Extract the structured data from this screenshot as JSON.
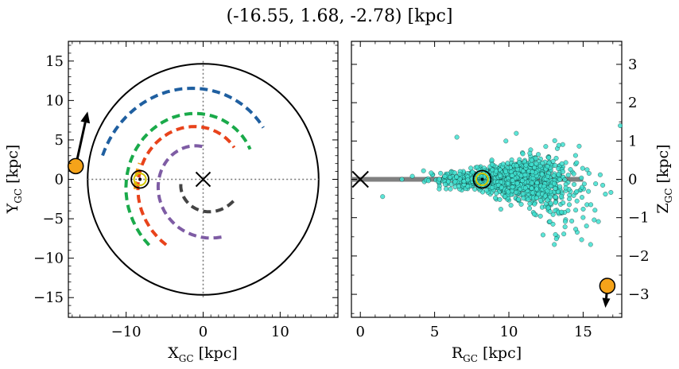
{
  "title": "(-16.55, 1.68, -2.78) [kpc]",
  "colors": {
    "arm_blue": "#1f5fa0",
    "arm_green": "#1aaa4a",
    "arm_red": "#e8431b",
    "arm_purple": "#7e5ca4",
    "arm_gray": "#444444",
    "arm_orange": "#ef9a1a",
    "star_marker": "#f5a31a",
    "disk_points": "#40e0d0",
    "disk_plane": "#808080",
    "sun_ring": "#d4c800"
  },
  "chart_data": [
    {
      "type": "scatter",
      "name": "top-down view",
      "xlabel": "X",
      "xlabel_sub": "GC",
      "xlabel_unit": " [kpc]",
      "ylabel": "Y",
      "ylabel_sub": "GC",
      "ylabel_unit": " [kpc]",
      "xlim": [
        -17.5,
        17.5
      ],
      "ylim": [
        -17.5,
        17.5
      ],
      "xticks": [
        -10,
        0,
        10
      ],
      "yticks": [
        -15,
        -10,
        -5,
        0,
        5,
        10,
        15
      ],
      "xtick_labels": [
        "−10",
        "0",
        "10"
      ],
      "ytick_labels": [
        "−15",
        "−10",
        "−5",
        "0",
        "5",
        "10",
        "15"
      ],
      "disk_radius": 15,
      "galactic_center": [
        0,
        0
      ],
      "sun": [
        -8.2,
        0
      ],
      "star": {
        "x": -16.55,
        "y": 1.68
      },
      "velocity_arrow": {
        "from": [
          -16.55,
          1.68
        ],
        "to": [
          -15.0,
          8.6
        ]
      },
      "spiral_arms": [
        {
          "color_key": "arm_blue",
          "r_start": 13.4,
          "r_end": 10.2,
          "theta_start": 167,
          "theta_end": 40
        },
        {
          "color_key": "arm_green",
          "r_start": 10.9,
          "r_end": 7.2,
          "theta_start": 230,
          "theta_end": 32
        },
        {
          "color_key": "arm_red",
          "r_start": 9.6,
          "r_end": 5.7,
          "theta_start": 240,
          "theta_end": 45
        },
        {
          "color_key": "arm_purple",
          "r_start": 7.7,
          "r_end": 4.1,
          "theta_start": 288,
          "theta_end": 88
        },
        {
          "color_key": "arm_gray",
          "r_start": 4.8,
          "r_end": 2.8,
          "theta_start": 325,
          "theta_end": 180
        },
        {
          "color_key": "arm_orange",
          "r_start": 8.9,
          "r_end": 8.5,
          "theta_start": 188,
          "theta_end": 166
        }
      ]
    },
    {
      "type": "scatter",
      "name": "side view",
      "xlabel": "R",
      "xlabel_sub": "GC",
      "xlabel_unit": " [kpc]",
      "ylabel": "Z",
      "ylabel_sub": "GC",
      "ylabel_unit": " [kpc]",
      "xlim": [
        -0.6,
        17.6
      ],
      "ylim": [
        -3.6,
        3.6
      ],
      "xticks": [
        0,
        5,
        10,
        15
      ],
      "yticks": [
        -3,
        -2,
        -1,
        0,
        1,
        2,
        3
      ],
      "xtick_labels": [
        "0",
        "5",
        "10",
        "15"
      ],
      "ytick_labels": [
        "−3",
        "−2",
        "−1",
        "0",
        "1",
        "2",
        "3"
      ],
      "disk_plane": {
        "r_end": 15,
        "z": 0
      },
      "galactic_center": [
        0,
        0
      ],
      "sun": [
        8.2,
        0
      ],
      "star": {
        "r": 16.63,
        "z": -2.78
      },
      "velocity_arrow": {
        "from": [
          16.63,
          -2.78
        ],
        "to": [
          16.5,
          -3.35
        ]
      },
      "disk_points": {
        "r_min": 1.5,
        "r_max": 17.5,
        "z_min": -1.7,
        "z_max": 1.4,
        "n": 1400
      }
    }
  ]
}
